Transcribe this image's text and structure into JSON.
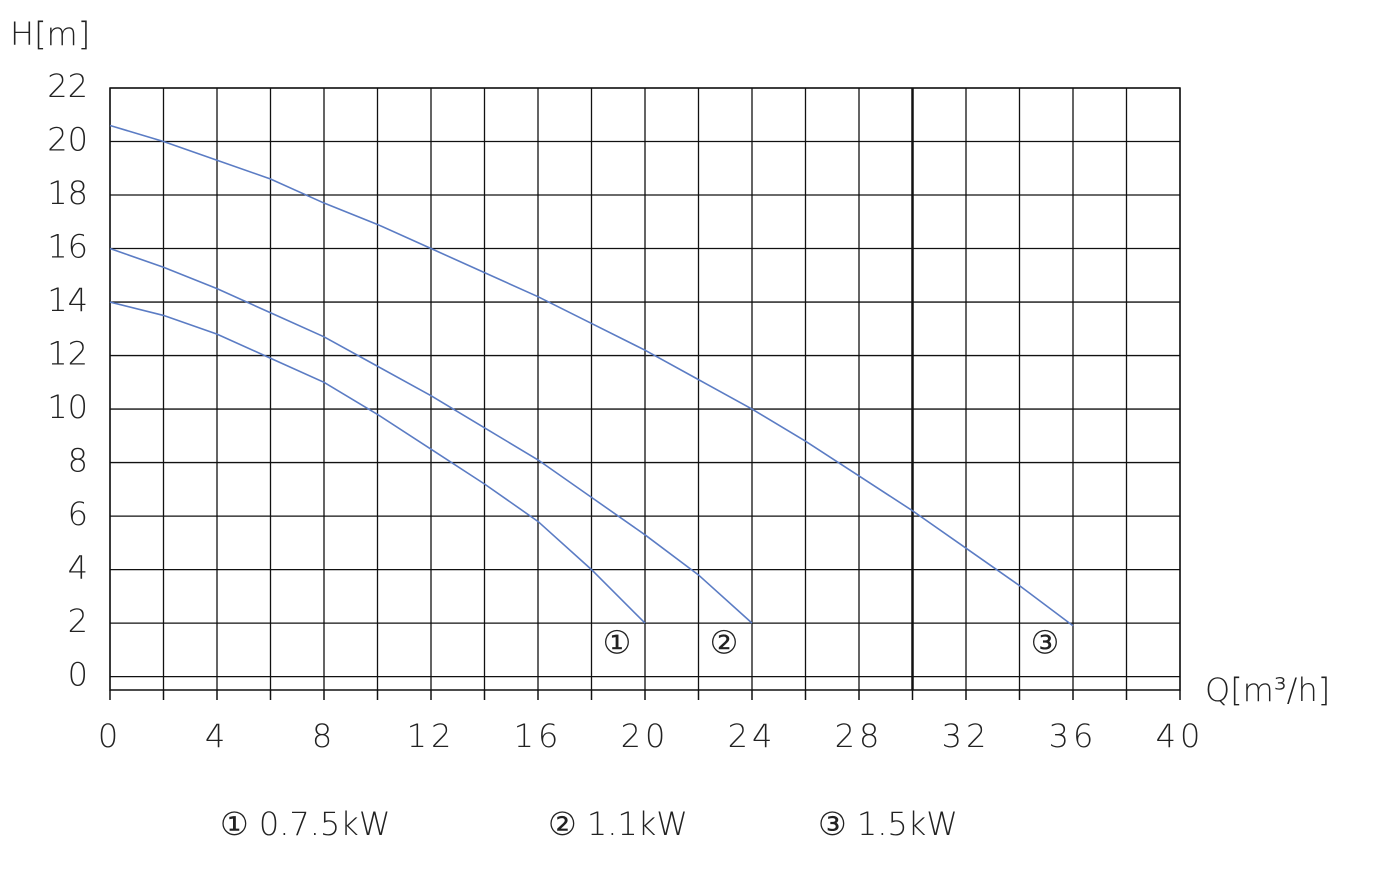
{
  "chart_data": {
    "type": "line",
    "y_label": "H[m]",
    "x_label": "Q[m³/h]",
    "xlim": [
      0,
      40
    ],
    "xticks": [
      0,
      4,
      8,
      12,
      16,
      20,
      24,
      28,
      32,
      36,
      40
    ],
    "x_minor_ticks": [
      2,
      6,
      10,
      14,
      18,
      22,
      26,
      30,
      34,
      38
    ],
    "highlight_x": 30,
    "ylim": [
      -0.5,
      22
    ],
    "yticks": [
      0,
      2,
      4,
      6,
      8,
      10,
      12,
      14,
      16,
      18,
      20,
      22
    ],
    "grid": true,
    "series": [
      {
        "name": "① 0.7.5kW",
        "curve_label": "①",
        "color": "#5b7cc4",
        "x": [
          0,
          2,
          4,
          6,
          8,
          10,
          12,
          14,
          16,
          18,
          20
        ],
        "values": [
          14,
          13.5,
          12.8,
          11.9,
          11,
          9.8,
          8.5,
          7.2,
          5.8,
          4,
          2
        ]
      },
      {
        "name": "② 1.1kW",
        "curve_label": "②",
        "color": "#5b7cc4",
        "x": [
          0,
          2,
          4,
          6,
          8,
          10,
          12,
          14,
          16,
          18,
          20,
          22,
          24
        ],
        "values": [
          16,
          15.3,
          14.5,
          13.6,
          12.7,
          11.6,
          10.5,
          9.3,
          8.1,
          6.7,
          5.3,
          3.8,
          2
        ]
      },
      {
        "name": "③ 1.5kW",
        "curve_label": "③",
        "color": "#5b7cc4",
        "x": [
          0,
          2,
          4,
          6,
          8,
          10,
          12,
          14,
          16,
          18,
          20,
          22,
          24,
          26,
          28,
          30,
          32,
          34,
          36
        ],
        "values": [
          20.6,
          20,
          19.3,
          18.6,
          17.7,
          16.9,
          16,
          15.1,
          14.2,
          13.2,
          12.2,
          11.1,
          10,
          8.8,
          7.5,
          6.2,
          4.8,
          3.4,
          1.9
        ]
      }
    ]
  }
}
